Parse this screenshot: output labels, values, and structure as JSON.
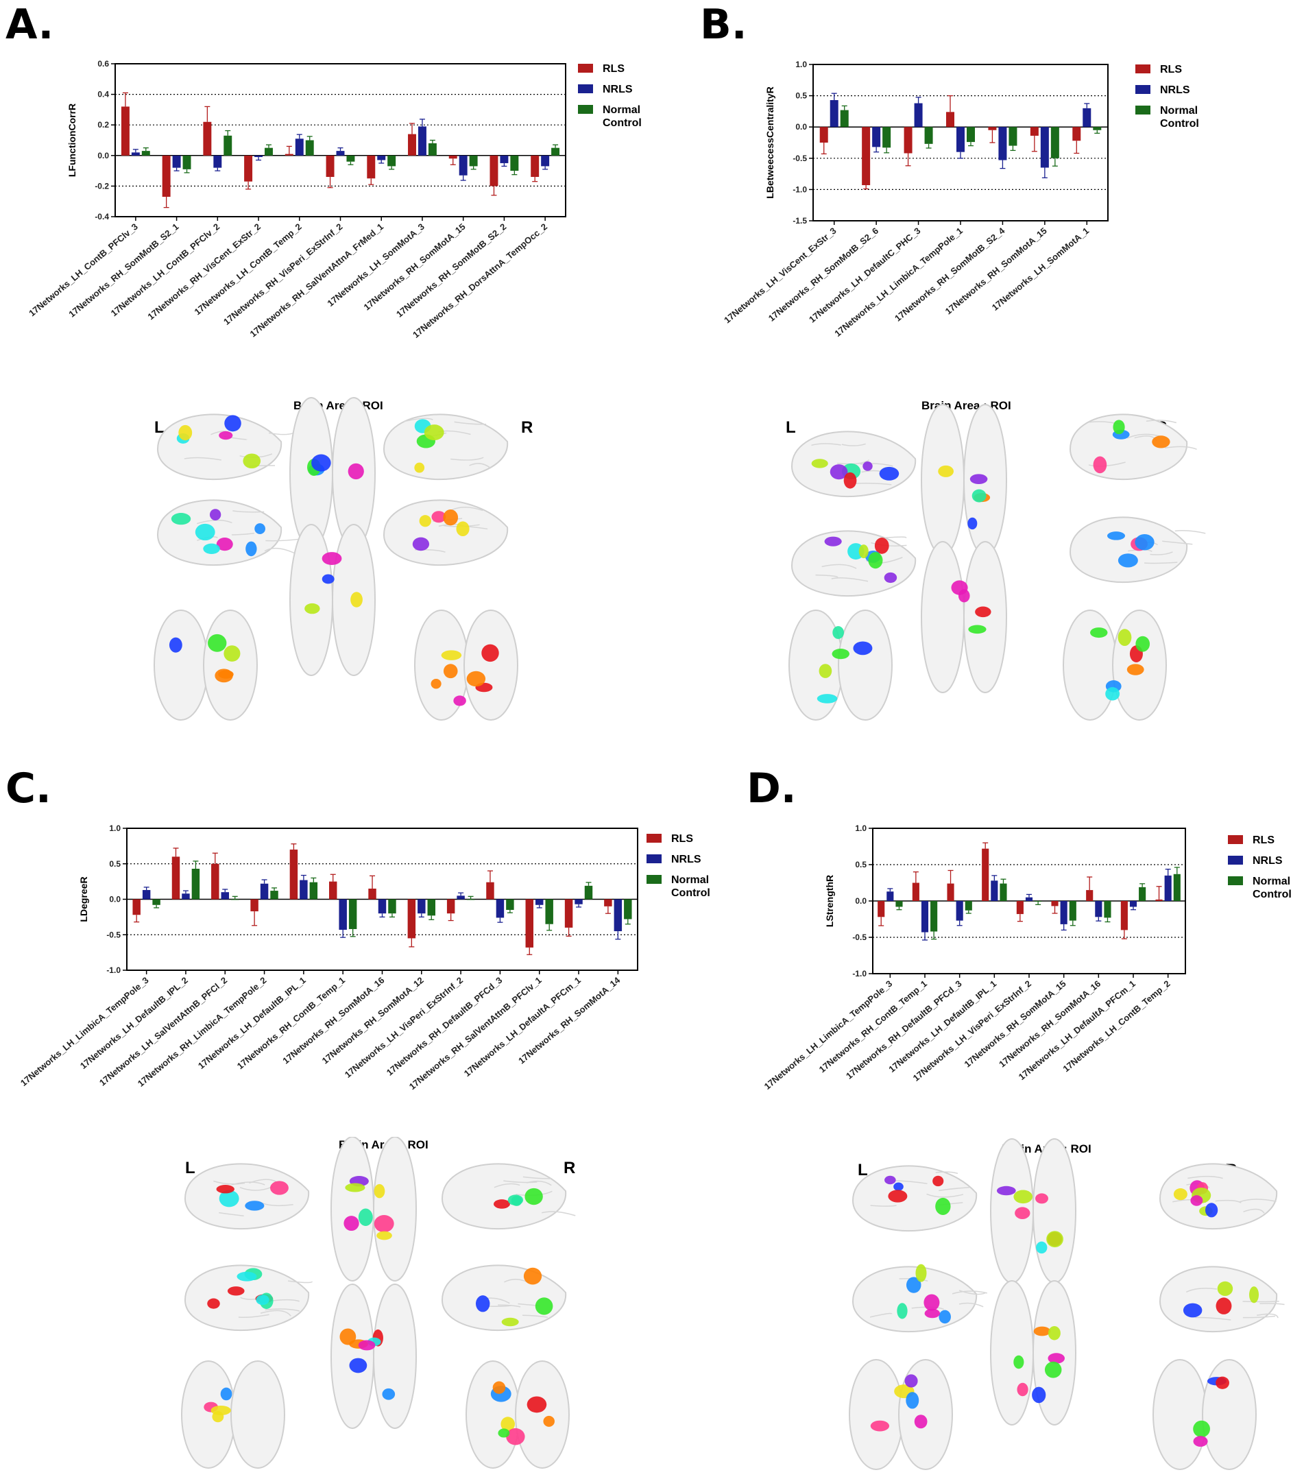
{
  "legend": {
    "rls": "RLS",
    "nrls": "NRLS",
    "nc_line1": "Normal",
    "nc_line2": "Control"
  },
  "colors": {
    "rls": "#b21c1c",
    "nrls": "#1a2190",
    "nc": "#1a6b1a"
  },
  "brain": {
    "title": "Brain Area : ROI",
    "left": "L",
    "right": "R"
  },
  "panels": {
    "A": {
      "label": "A."
    },
    "B": {
      "label": "B."
    },
    "C": {
      "label": "C."
    },
    "D": {
      "label": "D."
    }
  },
  "chart_data": [
    {
      "panel": "A",
      "type": "bar",
      "ylabel": "LFunctionCorrR",
      "ylim": [
        -0.4,
        0.6
      ],
      "yticks": [
        "-0.4",
        "-0.2",
        "0.0",
        "0.2",
        "0.4",
        "0.6"
      ],
      "ytick_values": [
        -0.4,
        -0.2,
        0,
        0.2,
        0.4,
        0.6
      ],
      "gridlines": [
        -0.2,
        0.2,
        0.4
      ],
      "categories": [
        "17Networks_LH_ContB_PFClv_3",
        "17Networks_RH_SomMotB_S2_1",
        "17Networks_LH_ContB_PFClv_2",
        "17Networks_RH_VisCent_ExStr_2",
        "17Networks_LH_ContB_Temp_2",
        "17Networks_RH_VisPeri_ExStrInf_2",
        "17Networks_RH_SalVentAttnA_FrMed_1",
        "17Networks_LH_SomMotA_3",
        "17Networks_RH_SomMotA_15",
        "17Networks_RH_SomMotB_S2_2",
        "17Networks_RH_DorsAttnA_TempOcc_2"
      ],
      "series": [
        {
          "name": "RLS",
          "values": [
            0.32,
            -0.27,
            0.22,
            -0.17,
            0.01,
            -0.14,
            -0.15,
            0.14,
            -0.02,
            -0.2,
            -0.14
          ],
          "errors": [
            0.09,
            0.07,
            0.1,
            0.05,
            0.05,
            0.07,
            0.04,
            0.07,
            0.04,
            0.06,
            0.03
          ]
        },
        {
          "name": "NRLS",
          "values": [
            0.02,
            -0.08,
            -0.08,
            -0.01,
            0.11,
            0.03,
            -0.03,
            0.19,
            -0.13,
            -0.05,
            -0.07
          ]
        },
        {
          "name": "Normal Control",
          "values": [
            0.03,
            -0.09,
            0.13,
            0.05,
            0.1,
            -0.04,
            -0.07,
            0.08,
            -0.07,
            -0.1,
            0.05
          ]
        }
      ]
    },
    {
      "panel": "B",
      "type": "bar",
      "ylabel": "LBetweecessCentralityR",
      "ylim": [
        -1.5,
        1.0
      ],
      "yticks": [
        "-1.5",
        "-1.0",
        "-0.5",
        "0.0",
        "0.5",
        "1.0"
      ],
      "ytick_values": [
        -1.5,
        -1.0,
        -0.5,
        0,
        0.5,
        1.0
      ],
      "gridlines": [
        -1.0,
        -0.5,
        0.5
      ],
      "categories": [
        "17Networks_LH_VisCent_ExStr_3",
        "17Networks_RH_SomMotB_S2_6",
        "17Networks_LH_DefaultC_PHC_3",
        "17Networks_LH_LimbicA_TempPole_1",
        "17Networks_RH_SomMotB_S2_4",
        "17Networks_RH_SomMotA_15",
        "17Networks_LH_SomMotA_1"
      ],
      "series": [
        {
          "name": "RLS",
          "values": [
            -0.25,
            -0.93,
            -0.42,
            0.24,
            -0.05,
            -0.14,
            -0.22
          ],
          "errors": [
            0.18,
            0.06,
            0.2,
            0.26,
            0.2,
            0.25,
            0.2
          ]
        },
        {
          "name": "NRLS",
          "values": [
            0.43,
            -0.32,
            0.38,
            -0.4,
            -0.53,
            -0.65,
            0.3
          ]
        },
        {
          "name": "Normal Control",
          "values": [
            0.27,
            -0.33,
            -0.27,
            -0.24,
            -0.3,
            -0.5,
            -0.05
          ]
        }
      ]
    },
    {
      "panel": "C",
      "type": "bar",
      "ylabel": "LDegreeR",
      "ylim": [
        -1.0,
        1.0
      ],
      "yticks": [
        "-1.0",
        "-0.5",
        "0.0",
        "0.5",
        "1.0"
      ],
      "ytick_values": [
        -1.0,
        -0.5,
        0,
        0.5,
        1.0
      ],
      "gridlines": [
        -0.5,
        0.5
      ],
      "categories": [
        "17Networks_LH_LimbicA_TempPole_3",
        "17Networks_LH_DefaultB_IPL_2",
        "17Networks_LH_SalVentAttnB_PFCl_2",
        "17Networks_RH_LimbicA_TempPole_2",
        "17Networks_LH_DefaultB_IPL_1",
        "17Networks_RH_ContB_Temp_1",
        "17Networks_RH_SomMotA_16",
        "17Networks_RH_SomMotA_12",
        "17Networks_LH_VisPeri_ExStrInf_2",
        "17Networks_RH_DefaultB_PFCd_3",
        "17Networks_RH_SalVentAttnB_PFClv_1",
        "17Networks_LH_DefaultA_PFCm_1",
        "17Networks_RH_SomMotA_14"
      ],
      "series": [
        {
          "name": "RLS",
          "values": [
            -0.22,
            0.6,
            0.5,
            -0.17,
            0.7,
            0.25,
            0.15,
            -0.55,
            -0.2,
            0.24,
            -0.68,
            -0.4,
            -0.1
          ],
          "errors": [
            0.1,
            0.12,
            0.15,
            0.2,
            0.08,
            0.1,
            0.18,
            0.12,
            0.1,
            0.16,
            0.1,
            0.12,
            0.1
          ]
        },
        {
          "name": "NRLS",
          "values": [
            0.13,
            0.08,
            0.1,
            0.22,
            0.27,
            -0.43,
            -0.2,
            -0.2,
            0.05,
            -0.26,
            -0.08,
            -0.07,
            -0.45
          ]
        },
        {
          "name": "Normal Control",
          "values": [
            -0.08,
            0.43,
            0.0,
            0.12,
            0.24,
            -0.42,
            -0.2,
            -0.23,
            0.0,
            -0.15,
            -0.35,
            0.19,
            -0.28
          ]
        }
      ]
    },
    {
      "panel": "D",
      "type": "bar",
      "ylabel": "LStrengthR",
      "ylim": [
        -1.0,
        1.0
      ],
      "yticks": [
        "-1.0",
        "-0.5",
        "0.0",
        "0.5",
        "1.0"
      ],
      "ytick_values": [
        -1.0,
        -0.5,
        0,
        0.5,
        1.0
      ],
      "gridlines": [
        -0.5,
        0.5
      ],
      "categories": [
        "17Networks_LH_LimbicA_TempPole_3",
        "17Networks_RH_ContB_Temp_1",
        "17Networks_RH_DefaultB_PFCd_3",
        "17Networks_LH_DefaultB_IPL_1",
        "17Networks_LH_VisPeri_ExStrInf_2",
        "17Networks_RH_SomMotA_15",
        "17Networks_RH_SomMotA_16",
        "17Networks_LH_DefaultA_PFCm_1",
        "17Networks_LH_ContB_Temp_2"
      ],
      "series": [
        {
          "name": "RLS",
          "values": [
            -0.22,
            0.25,
            0.24,
            0.72,
            -0.18,
            -0.07,
            0.15,
            -0.4,
            0.02
          ],
          "errors": [
            0.12,
            0.15,
            0.18,
            0.08,
            0.1,
            0.1,
            0.18,
            0.12,
            0.18
          ]
        },
        {
          "name": "NRLS",
          "values": [
            0.13,
            -0.43,
            -0.27,
            0.28,
            0.05,
            -0.32,
            -0.22,
            -0.08,
            0.35
          ]
        },
        {
          "name": "Normal Control",
          "values": [
            -0.08,
            -0.42,
            -0.13,
            0.24,
            -0.01,
            -0.27,
            -0.23,
            0.19,
            0.37
          ]
        }
      ]
    }
  ]
}
